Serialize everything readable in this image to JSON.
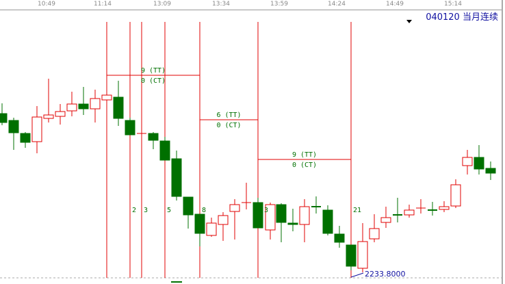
{
  "time_axis": [
    "10:49",
    "11:14",
    "13:09",
    "13:34",
    "13:59",
    "14:24",
    "14:49",
    "15:14"
  ],
  "instrument": {
    "code": "040120",
    "name": "当月连续"
  },
  "colors": {
    "up": "#e00000",
    "down": "#007000",
    "marker": "#e00000",
    "label": "#007000",
    "price": "#1010a0"
  },
  "annotations": [
    {
      "tt": "9 (TT)",
      "ct": "0 (CT)"
    },
    {
      "tt": "6 (TT)",
      "ct": "0 (CT)"
    },
    {
      "tt": "9 (TT)",
      "ct": "0 (CT)"
    }
  ],
  "count_labels": [
    "2",
    "3",
    "5",
    "8",
    "3",
    "21"
  ],
  "low_price_label": "2233.8000",
  "marker_icon": "down-triangle"
}
